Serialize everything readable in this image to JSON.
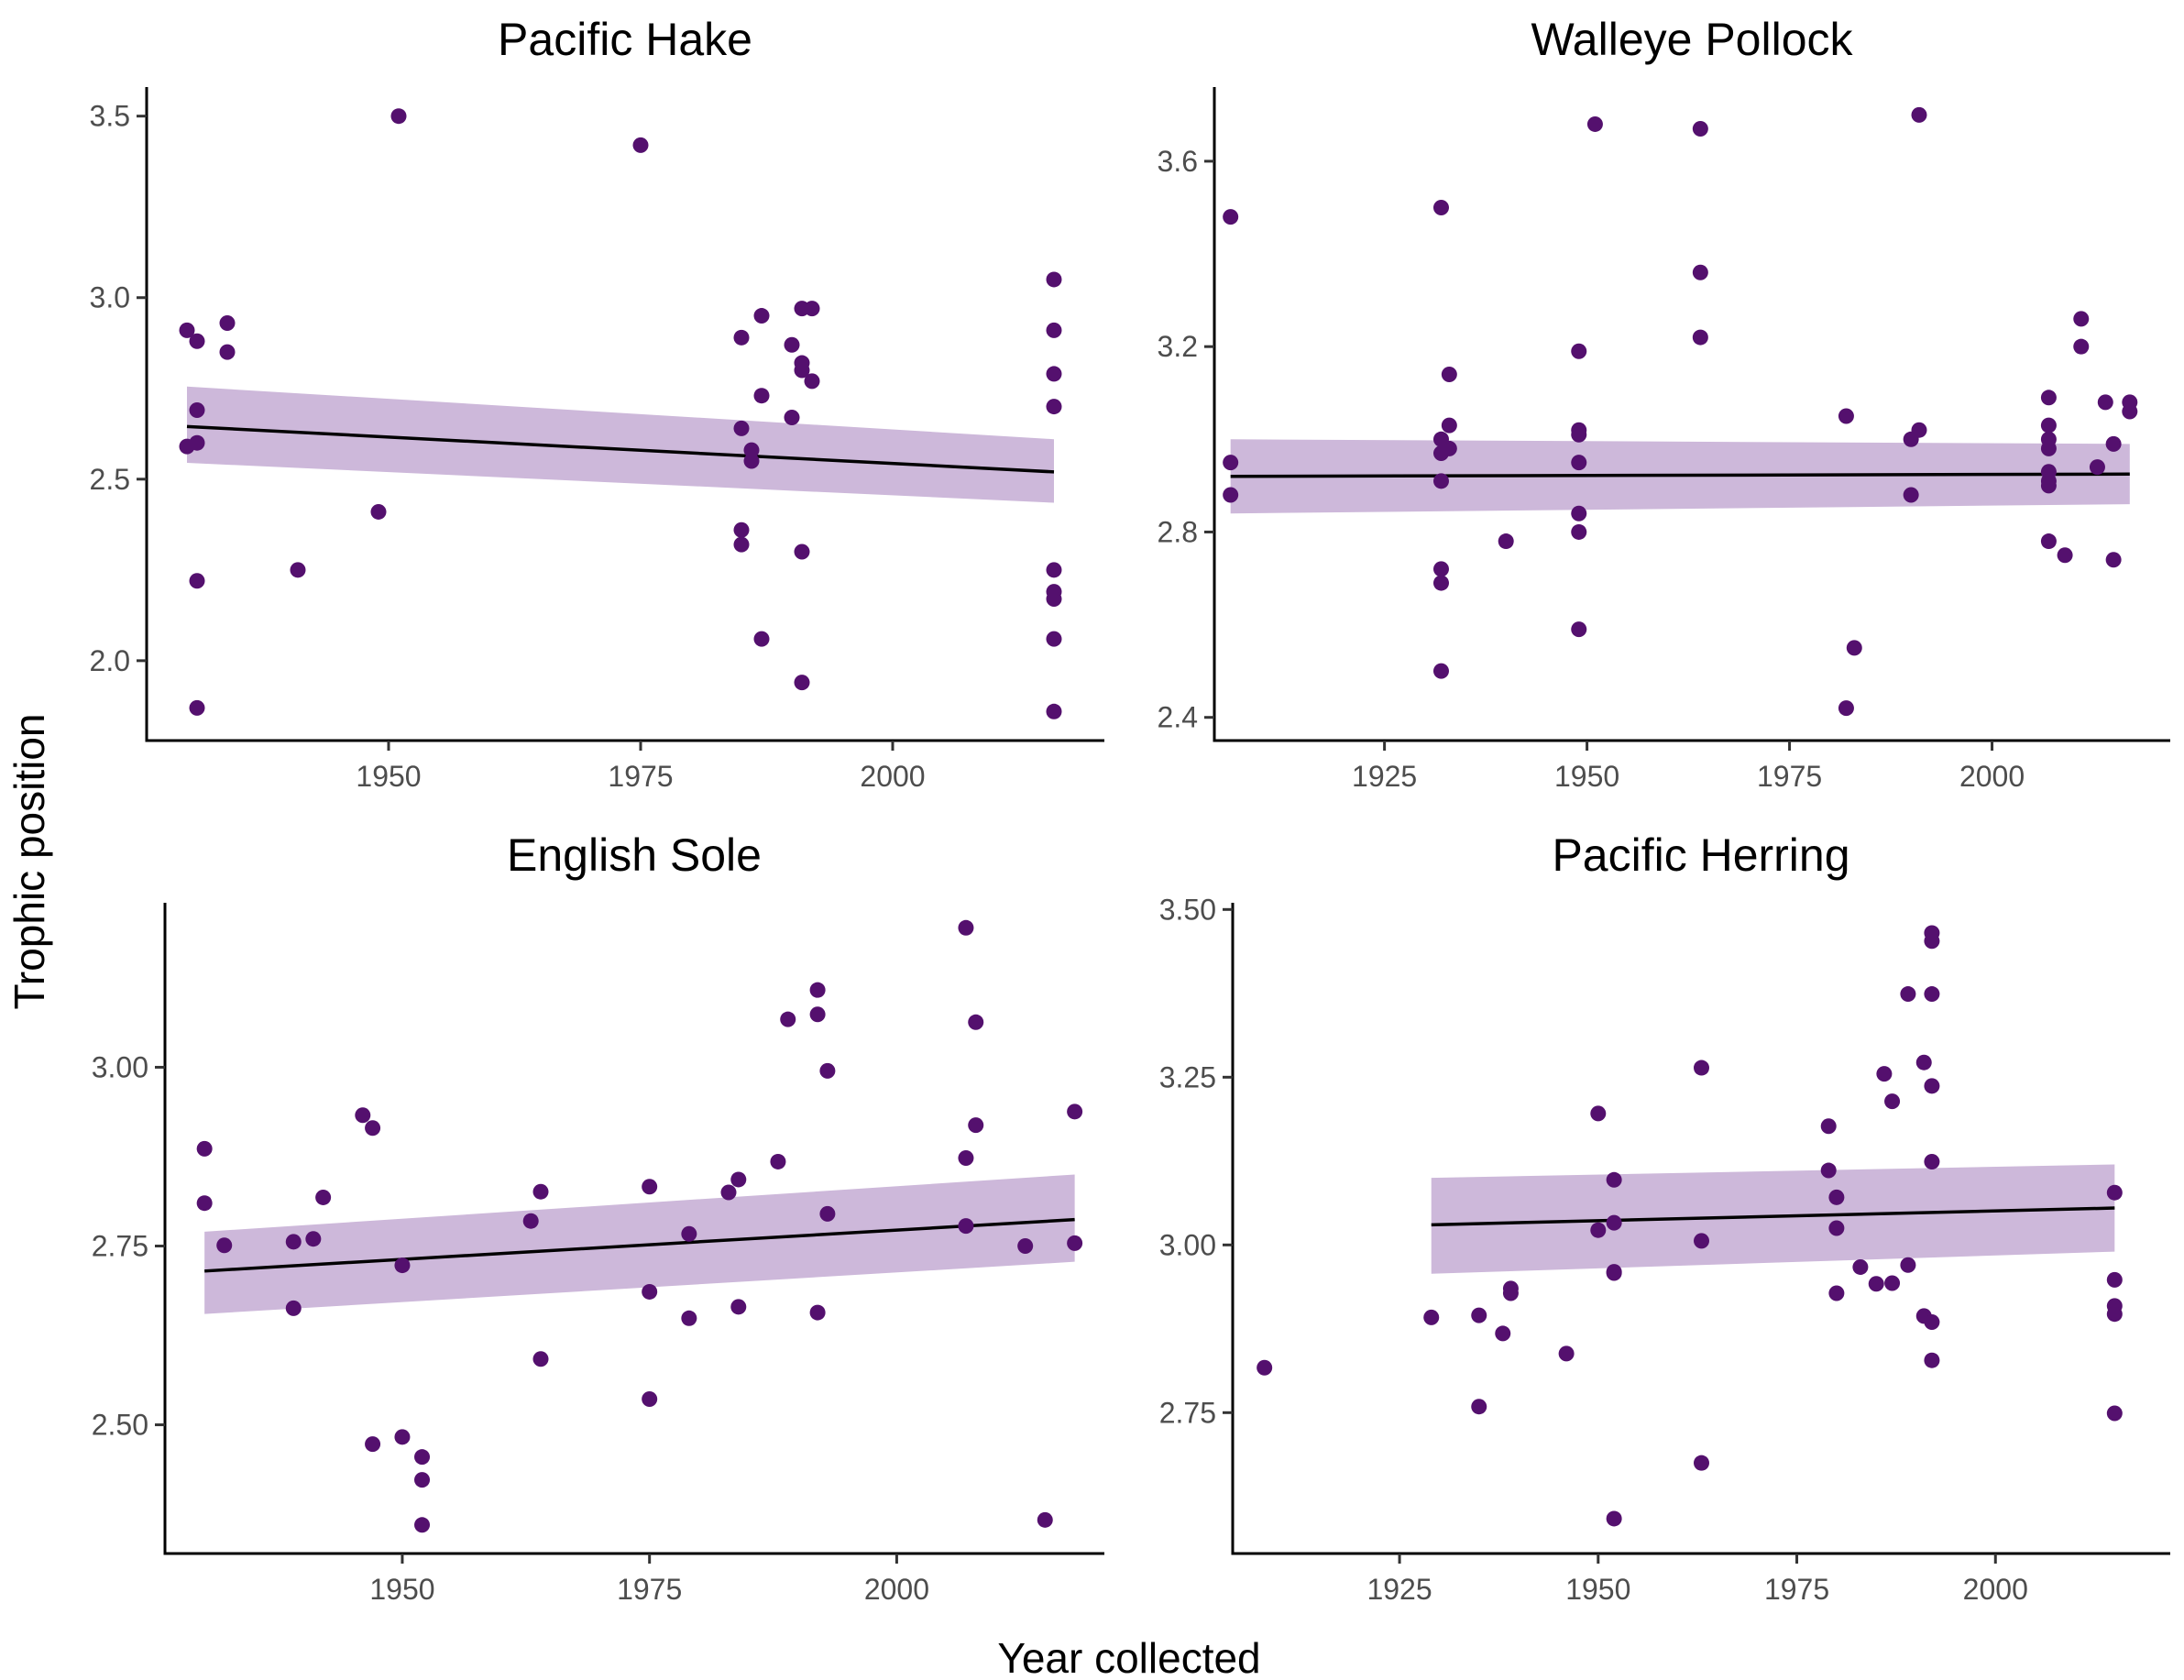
{
  "figure": {
    "xlabel": "Year collected",
    "ylabel": "Trophic position",
    "point_color": "#54106E",
    "band_color": "#CDB8DA",
    "line_color": "#000000"
  },
  "chart_data": [
    {
      "type": "scatter",
      "title": "Pacific Hake",
      "xlim": [
        1926,
        2021
      ],
      "ylim": [
        1.78,
        3.58
      ],
      "xticks": [
        1950,
        1975,
        2000
      ],
      "yticks": [
        2.0,
        2.5,
        3.0,
        3.5
      ],
      "ytick_labels": [
        "2.0",
        "2.5",
        "3.0",
        "3.5"
      ],
      "fit": {
        "x": [
          1930,
          2016
        ],
        "y": [
          2.645,
          2.52
        ],
        "lower": [
          2.545,
          2.435
        ],
        "upper": [
          2.755,
          2.61
        ]
      },
      "points": [
        [
          1930,
          2.91
        ],
        [
          1931,
          2.88
        ],
        [
          1931,
          2.69
        ],
        [
          1930,
          2.59
        ],
        [
          1931,
          2.6
        ],
        [
          1931,
          2.22
        ],
        [
          1931,
          1.87
        ],
        [
          1934,
          2.93
        ],
        [
          1934,
          2.85
        ],
        [
          1941,
          2.25
        ],
        [
          1949,
          2.41
        ],
        [
          1951,
          3.5
        ],
        [
          1975,
          3.42
        ],
        [
          1985,
          2.89
        ],
        [
          1985,
          2.64
        ],
        [
          1985,
          2.36
        ],
        [
          1985,
          2.32
        ],
        [
          1986,
          2.58
        ],
        [
          1986,
          2.55
        ],
        [
          1987,
          2.95
        ],
        [
          1987,
          2.73
        ],
        [
          1987,
          2.06
        ],
        [
          1990,
          2.87
        ],
        [
          1990,
          2.67
        ],
        [
          1991,
          2.97
        ],
        [
          1991,
          2.82
        ],
        [
          1991,
          2.8
        ],
        [
          1991,
          2.3
        ],
        [
          1991,
          1.94
        ],
        [
          1992,
          2.97
        ],
        [
          1992,
          2.77
        ],
        [
          2016,
          3.05
        ],
        [
          2016,
          2.91
        ],
        [
          2016,
          2.79
        ],
        [
          2016,
          2.7
        ],
        [
          2016,
          2.25
        ],
        [
          2016,
          2.19
        ],
        [
          2016,
          2.17
        ],
        [
          2016,
          2.06
        ],
        [
          2016,
          1.86
        ]
      ]
    },
    {
      "type": "scatter",
      "title": "Walleye Pollock",
      "xlim": [
        1904,
        2022
      ],
      "ylim": [
        2.35,
        3.76
      ],
      "xticks": [
        1925,
        1950,
        1975,
        2000
      ],
      "yticks": [
        2.4,
        2.8,
        3.2,
        3.6
      ],
      "ytick_labels": [
        "2.4",
        "2.8",
        "3.2",
        "3.6"
      ],
      "fit": {
        "x": [
          1906,
          2017
        ],
        "y": [
          2.92,
          2.925
        ],
        "lower": [
          2.84,
          2.86
        ],
        "upper": [
          3.0,
          2.99
        ]
      },
      "points": [
        [
          1906,
          3.48
        ],
        [
          1906,
          2.95
        ],
        [
          1906,
          2.88
        ],
        [
          1932,
          3.5
        ],
        [
          1932,
          3.0
        ],
        [
          1932,
          2.97
        ],
        [
          1932,
          2.91
        ],
        [
          1932,
          2.72
        ],
        [
          1932,
          2.69
        ],
        [
          1932,
          2.5
        ],
        [
          1933,
          3.14
        ],
        [
          1933,
          3.03
        ],
        [
          1933,
          2.98
        ],
        [
          1940,
          2.78
        ],
        [
          1949,
          3.19
        ],
        [
          1949,
          3.02
        ],
        [
          1949,
          3.01
        ],
        [
          1949,
          2.95
        ],
        [
          1949,
          2.84
        ],
        [
          1949,
          2.8
        ],
        [
          1949,
          2.59
        ],
        [
          1951,
          3.68
        ],
        [
          1964,
          3.67
        ],
        [
          1964,
          3.36
        ],
        [
          1964,
          3.22
        ],
        [
          1982,
          3.05
        ],
        [
          1983,
          2.55
        ],
        [
          1982,
          2.42
        ],
        [
          1990,
          3.0
        ],
        [
          1990,
          2.88
        ],
        [
          1991,
          3.7
        ],
        [
          1991,
          3.02
        ],
        [
          2007,
          3.09
        ],
        [
          2007,
          3.03
        ],
        [
          2007,
          3.0
        ],
        [
          2007,
          2.98
        ],
        [
          2007,
          2.93
        ],
        [
          2007,
          2.91
        ],
        [
          2007,
          2.9
        ],
        [
          2007,
          2.78
        ],
        [
          2009,
          2.75
        ],
        [
          2011,
          3.26
        ],
        [
          2011,
          3.2
        ],
        [
          2013,
          2.94
        ],
        [
          2014,
          3.08
        ],
        [
          2015,
          2.99
        ],
        [
          2015,
          2.74
        ],
        [
          2017,
          3.08
        ],
        [
          2017,
          3.06
        ]
      ]
    },
    {
      "type": "scatter",
      "title": "English Sole",
      "xlim": [
        1926,
        2021
      ],
      "ylim": [
        2.32,
        3.23
      ],
      "xticks": [
        1950,
        1975,
        2000
      ],
      "yticks": [
        2.5,
        2.75,
        3.0
      ],
      "ytick_labels": [
        "2.50",
        "2.75",
        "3.00"
      ],
      "fit": {
        "x": [
          1930,
          2018
        ],
        "y": [
          2.715,
          2.787
        ],
        "lower": [
          2.655,
          2.728
        ],
        "upper": [
          2.77,
          2.85
        ]
      },
      "points": [
        [
          1930,
          2.886
        ],
        [
          1930,
          2.81
        ],
        [
          1932,
          2.751
        ],
        [
          1939,
          2.756
        ],
        [
          1939,
          2.663
        ],
        [
          1941,
          2.76
        ],
        [
          1942,
          2.818
        ],
        [
          1946,
          2.933
        ],
        [
          1947,
          2.915
        ],
        [
          1947,
          2.473
        ],
        [
          1950,
          2.723
        ],
        [
          1950,
          2.483
        ],
        [
          1952,
          2.455
        ],
        [
          1952,
          2.423
        ],
        [
          1952,
          2.36
        ],
        [
          1963,
          2.785
        ],
        [
          1964,
          2.826
        ],
        [
          1964,
          2.592
        ],
        [
          1975,
          2.833
        ],
        [
          1975,
          2.686
        ],
        [
          1975,
          2.536
        ],
        [
          1979,
          2.767
        ],
        [
          1979,
          2.649
        ],
        [
          1983,
          2.825
        ],
        [
          1984,
          2.843
        ],
        [
          1984,
          2.665
        ],
        [
          1988,
          2.868
        ],
        [
          1989,
          3.067
        ],
        [
          1992,
          3.108
        ],
        [
          1992,
          3.074
        ],
        [
          1992,
          2.657
        ],
        [
          1993,
          2.995
        ],
        [
          1993,
          2.795
        ],
        [
          2007,
          3.195
        ],
        [
          2007,
          2.873
        ],
        [
          2007,
          2.778
        ],
        [
          2008,
          3.063
        ],
        [
          2008,
          2.919
        ],
        [
          2013,
          2.75
        ],
        [
          2015,
          2.367
        ],
        [
          2018,
          2.938
        ],
        [
          2018,
          2.754
        ]
      ]
    },
    {
      "type": "scatter",
      "title": "Pacific Herring",
      "xlim": [
        1904,
        2022
      ],
      "ylim": [
        2.54,
        3.51
      ],
      "xticks": [
        1925,
        1950,
        1975,
        2000
      ],
      "yticks": [
        2.75,
        3.0,
        3.25,
        3.5
      ],
      "ytick_labels": [
        "2.75",
        "3.00",
        "3.25",
        "3.50"
      ],
      "fit": {
        "x": [
          1929,
          2015
        ],
        "y": [
          3.03,
          3.055
        ],
        "lower": [
          2.957,
          2.99
        ],
        "upper": [
          3.1,
          3.12
        ]
      },
      "points": [
        [
          1908,
          2.817
        ],
        [
          1929,
          2.892
        ],
        [
          1935,
          2.895
        ],
        [
          1935,
          2.759
        ],
        [
          1938,
          2.868
        ],
        [
          1939,
          2.935
        ],
        [
          1939,
          2.928
        ],
        [
          1946,
          2.838
        ],
        [
          1950,
          3.196
        ],
        [
          1950,
          3.022
        ],
        [
          1952,
          3.097
        ],
        [
          1952,
          3.033
        ],
        [
          1952,
          2.96
        ],
        [
          1952,
          2.958
        ],
        [
          1952,
          2.592
        ],
        [
          1963,
          3.264
        ],
        [
          1963,
          3.006
        ],
        [
          1963,
          2.675
        ],
        [
          1979,
          3.177
        ],
        [
          1979,
          3.111
        ],
        [
          1980,
          3.071
        ],
        [
          1980,
          3.025
        ],
        [
          1980,
          2.928
        ],
        [
          1983,
          2.967
        ],
        [
          1985,
          2.942
        ],
        [
          1986,
          3.255
        ],
        [
          1987,
          3.214
        ],
        [
          1987,
          2.943
        ],
        [
          1989,
          3.374
        ],
        [
          1989,
          2.97
        ],
        [
          1991,
          3.272
        ],
        [
          1991,
          2.894
        ],
        [
          1992,
          3.465
        ],
        [
          1992,
          3.453
        ],
        [
          1992,
          3.374
        ],
        [
          1992,
          3.237
        ],
        [
          1992,
          3.124
        ],
        [
          1992,
          2.885
        ],
        [
          1992,
          2.828
        ],
        [
          2015,
          3.078
        ],
        [
          2015,
          2.948
        ],
        [
          2015,
          2.909
        ],
        [
          2015,
          2.897
        ],
        [
          2015,
          2.749
        ]
      ]
    }
  ]
}
